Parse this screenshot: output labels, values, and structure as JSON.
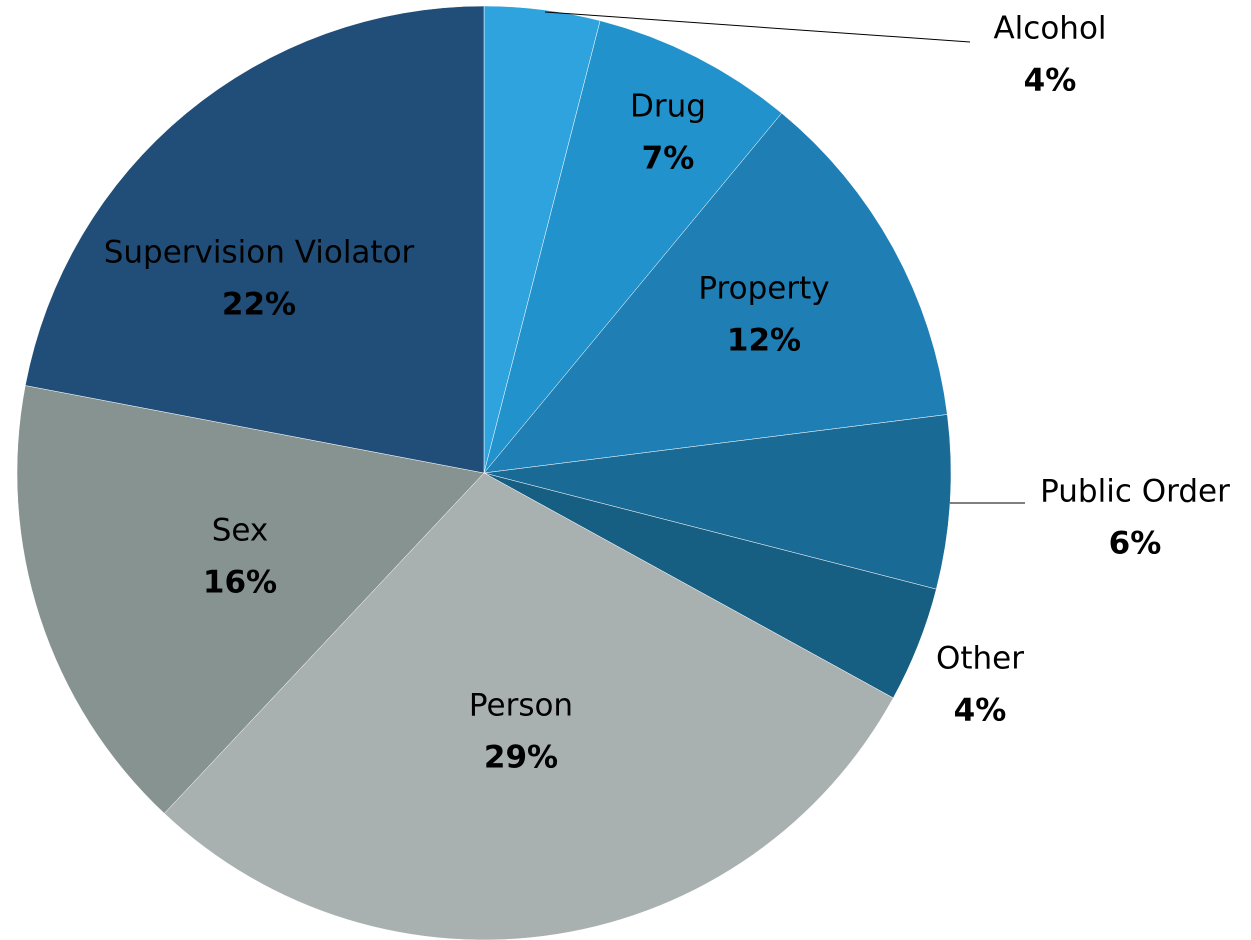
{
  "chart_data": {
    "type": "pie",
    "categories": [
      "Alcohol",
      "Drug",
      "Property",
      "Public Order",
      "Other",
      "Person",
      "Sex",
      "Supervision Violator"
    ],
    "values": [
      4,
      7,
      12,
      6,
      4,
      29,
      16,
      22
    ],
    "value_labels": [
      "4%",
      "7%",
      "12%",
      "6%",
      "4%",
      "29%",
      "16%",
      "22%"
    ],
    "colors": [
      "#2fa3dd",
      "#2192cc",
      "#1f7fb5",
      "#1a6a96",
      "#175e83",
      "#a9b1b0",
      "#869391",
      "#214e78"
    ]
  }
}
